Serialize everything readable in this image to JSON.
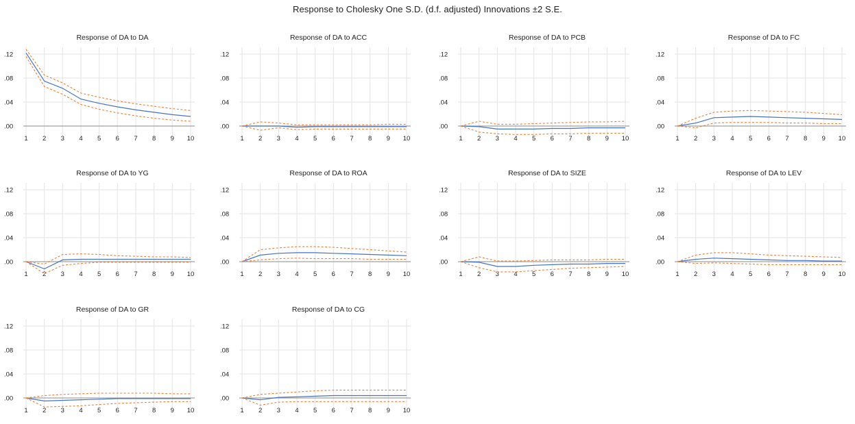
{
  "title": "Response to Cholesky One S.D. (d.f. adjusted) Innovations ±2 S.E.",
  "colors": {
    "response": "#4472c4",
    "band": "#ed7d31",
    "grid": "#e3e3e3",
    "zero": "#a0a0a0"
  },
  "chart_data": [
    {
      "type": "line",
      "title": "Response of DA to DA",
      "ylim": [
        -0.01,
        0.13
      ],
      "yticks": [
        ".00",
        ".04",
        ".08",
        ".12"
      ],
      "ytick_values": [
        0,
        0.04,
        0.08,
        0.12
      ],
      "x": [
        1,
        2,
        3,
        4,
        5,
        6,
        7,
        8,
        9,
        10
      ],
      "series": [
        {
          "role": "response",
          "values": [
            0.122,
            0.075,
            0.063,
            0.045,
            0.038,
            0.032,
            0.027,
            0.023,
            0.019,
            0.016
          ]
        },
        {
          "role": "upper",
          "values": [
            0.128,
            0.085,
            0.072,
            0.055,
            0.048,
            0.042,
            0.037,
            0.033,
            0.029,
            0.026
          ]
        },
        {
          "role": "lower",
          "values": [
            0.116,
            0.066,
            0.053,
            0.036,
            0.028,
            0.022,
            0.017,
            0.013,
            0.01,
            0.008
          ]
        }
      ]
    },
    {
      "type": "line",
      "title": "Response of DA to ACC",
      "ylim": [
        -0.01,
        0.13
      ],
      "yticks": [
        ".00",
        ".04",
        ".08",
        ".12"
      ],
      "ytick_values": [
        0,
        0.04,
        0.08,
        0.12
      ],
      "x": [
        1,
        2,
        3,
        4,
        5,
        6,
        7,
        8,
        9,
        10
      ],
      "series": [
        {
          "role": "response",
          "values": [
            0,
            0.0,
            0.0,
            -0.002,
            -0.001,
            -0.001,
            -0.001,
            -0.001,
            -0.001,
            -0.001
          ]
        },
        {
          "role": "upper",
          "values": [
            0,
            0.007,
            0.005,
            0.002,
            0.002,
            0.002,
            0.002,
            0.002,
            0.003,
            0.003
          ]
        },
        {
          "role": "lower",
          "values": [
            0,
            -0.007,
            -0.003,
            -0.006,
            -0.005,
            -0.005,
            -0.005,
            -0.005,
            -0.005,
            -0.005
          ]
        }
      ]
    },
    {
      "type": "line",
      "title": "Response of DA to PCB",
      "ylim": [
        -0.01,
        0.13
      ],
      "yticks": [
        ".00",
        ".04",
        ".08",
        ".12"
      ],
      "ytick_values": [
        0,
        0.04,
        0.08,
        0.12
      ],
      "x": [
        1,
        2,
        3,
        4,
        5,
        6,
        7,
        8,
        9,
        10
      ],
      "series": [
        {
          "role": "response",
          "values": [
            0,
            -0.001,
            -0.005,
            -0.005,
            -0.005,
            -0.004,
            -0.004,
            -0.003,
            -0.003,
            -0.003
          ]
        },
        {
          "role": "upper",
          "values": [
            0,
            0.008,
            0.003,
            0.003,
            0.004,
            0.005,
            0.006,
            0.007,
            0.007,
            0.008
          ]
        },
        {
          "role": "lower",
          "values": [
            0,
            -0.01,
            -0.013,
            -0.014,
            -0.014,
            -0.013,
            -0.013,
            -0.012,
            -0.012,
            -0.012
          ]
        }
      ]
    },
    {
      "type": "line",
      "title": "Response of DA to FC",
      "ylim": [
        -0.01,
        0.13
      ],
      "yticks": [
        ".00",
        ".04",
        ".08",
        ".12"
      ],
      "ytick_values": [
        0,
        0.04,
        0.08,
        0.12
      ],
      "x": [
        1,
        2,
        3,
        4,
        5,
        6,
        7,
        8,
        9,
        10
      ],
      "series": [
        {
          "role": "response",
          "values": [
            0,
            0.005,
            0.014,
            0.015,
            0.016,
            0.015,
            0.014,
            0.013,
            0.012,
            0.011
          ]
        },
        {
          "role": "upper",
          "values": [
            0,
            0.013,
            0.023,
            0.025,
            0.026,
            0.025,
            0.024,
            0.023,
            0.021,
            0.019
          ]
        },
        {
          "role": "lower",
          "values": [
            0,
            -0.003,
            0.005,
            0.006,
            0.006,
            0.006,
            0.005,
            0.005,
            0.004,
            0.004
          ]
        }
      ]
    },
    {
      "type": "line",
      "title": "Response of DA to YG",
      "ylim": [
        -0.01,
        0.13
      ],
      "yticks": [
        ".00",
        ".04",
        ".08",
        ".12"
      ],
      "ytick_values": [
        0,
        0.04,
        0.08,
        0.12
      ],
      "x": [
        1,
        2,
        3,
        4,
        5,
        6,
        7,
        8,
        9,
        10
      ],
      "series": [
        {
          "role": "response",
          "values": [
            0,
            -0.012,
            0.003,
            0.004,
            0.004,
            0.004,
            0.004,
            0.004,
            0.004,
            0.004
          ]
        },
        {
          "role": "upper",
          "values": [
            0,
            -0.004,
            0.012,
            0.013,
            0.012,
            0.01,
            0.009,
            0.008,
            0.008,
            0.007
          ]
        },
        {
          "role": "lower",
          "values": [
            0,
            -0.02,
            -0.006,
            -0.003,
            -0.001,
            -0.001,
            -0.001,
            -0.001,
            -0.001,
            -0.001
          ]
        }
      ]
    },
    {
      "type": "line",
      "title": "Response of DA to ROA",
      "ylim": [
        -0.01,
        0.13
      ],
      "yticks": [
        ".00",
        ".04",
        ".08",
        ".12"
      ],
      "ytick_values": [
        0,
        0.04,
        0.08,
        0.12
      ],
      "x": [
        1,
        2,
        3,
        4,
        5,
        6,
        7,
        8,
        9,
        10
      ],
      "series": [
        {
          "role": "response",
          "values": [
            0,
            0.011,
            0.014,
            0.015,
            0.015,
            0.014,
            0.013,
            0.012,
            0.011,
            0.01
          ]
        },
        {
          "role": "upper",
          "values": [
            0,
            0.02,
            0.023,
            0.025,
            0.025,
            0.024,
            0.022,
            0.02,
            0.018,
            0.016
          ]
        },
        {
          "role": "lower",
          "values": [
            0,
            0.003,
            0.005,
            0.006,
            0.005,
            0.005,
            0.005,
            0.004,
            0.004,
            0.004
          ]
        }
      ]
    },
    {
      "type": "line",
      "title": "Response of DA to SIZE",
      "ylim": [
        -0.01,
        0.13
      ],
      "yticks": [
        ".00",
        ".04",
        ".08",
        ".12"
      ],
      "ytick_values": [
        0,
        0.04,
        0.08,
        0.12
      ],
      "x": [
        1,
        2,
        3,
        4,
        5,
        6,
        7,
        8,
        9,
        10
      ],
      "series": [
        {
          "role": "response",
          "values": [
            0,
            -0.001,
            -0.008,
            -0.008,
            -0.006,
            -0.005,
            -0.004,
            -0.004,
            -0.003,
            -0.003
          ]
        },
        {
          "role": "upper",
          "values": [
            0,
            0.008,
            0.001,
            0.001,
            0.002,
            0.003,
            0.003,
            0.003,
            0.004,
            0.004
          ]
        },
        {
          "role": "lower",
          "values": [
            0,
            -0.01,
            -0.017,
            -0.017,
            -0.015,
            -0.013,
            -0.011,
            -0.01,
            -0.009,
            -0.008
          ]
        }
      ]
    },
    {
      "type": "line",
      "title": "Response of DA to LEV",
      "ylim": [
        -0.01,
        0.13
      ],
      "yticks": [
        ".00",
        ".04",
        ".08",
        ".12"
      ],
      "ytick_values": [
        0,
        0.04,
        0.08,
        0.12
      ],
      "x": [
        1,
        2,
        3,
        4,
        5,
        6,
        7,
        8,
        9,
        10
      ],
      "series": [
        {
          "role": "response",
          "values": [
            0,
            0.004,
            0.006,
            0.005,
            0.004,
            0.003,
            0.002,
            0.002,
            0.001,
            0.001
          ]
        },
        {
          "role": "upper",
          "values": [
            0,
            0.011,
            0.015,
            0.015,
            0.013,
            0.011,
            0.01,
            0.009,
            0.008,
            0.007
          ]
        },
        {
          "role": "lower",
          "values": [
            0,
            -0.003,
            -0.002,
            -0.003,
            -0.004,
            -0.005,
            -0.005,
            -0.005,
            -0.005,
            -0.005
          ]
        }
      ]
    },
    {
      "type": "line",
      "title": "Response of DA to GR",
      "ylim": [
        -0.01,
        0.13
      ],
      "yticks": [
        ".00",
        ".04",
        ".08",
        ".12"
      ],
      "ytick_values": [
        0,
        0.04,
        0.08,
        0.12
      ],
      "x": [
        1,
        2,
        3,
        4,
        5,
        6,
        7,
        8,
        9,
        10
      ],
      "series": [
        {
          "role": "response",
          "values": [
            0,
            -0.005,
            -0.004,
            -0.003,
            -0.002,
            -0.001,
            -0.001,
            -0.001,
            -0.001,
            -0.001
          ]
        },
        {
          "role": "upper",
          "values": [
            0,
            0.004,
            0.006,
            0.007,
            0.008,
            0.008,
            0.008,
            0.008,
            0.007,
            0.007
          ]
        },
        {
          "role": "lower",
          "values": [
            0,
            -0.015,
            -0.014,
            -0.013,
            -0.011,
            -0.009,
            -0.008,
            -0.007,
            -0.006,
            -0.006
          ]
        }
      ]
    },
    {
      "type": "line",
      "title": "Response of DA to CG",
      "ylim": [
        -0.01,
        0.13
      ],
      "yticks": [
        ".00",
        ".04",
        ".08",
        ".12"
      ],
      "ytick_values": [
        0,
        0.04,
        0.08,
        0.12
      ],
      "x": [
        1,
        2,
        3,
        4,
        5,
        6,
        7,
        8,
        9,
        10
      ],
      "series": [
        {
          "role": "response",
          "values": [
            0,
            -0.003,
            0.001,
            0.002,
            0.003,
            0.004,
            0.004,
            0.004,
            0.004,
            0.004
          ]
        },
        {
          "role": "upper",
          "values": [
            0,
            0.006,
            0.008,
            0.01,
            0.012,
            0.013,
            0.013,
            0.013,
            0.013,
            0.013
          ]
        },
        {
          "role": "lower",
          "values": [
            0,
            -0.012,
            -0.007,
            -0.006,
            -0.006,
            -0.006,
            -0.006,
            -0.006,
            -0.006,
            -0.006
          ]
        }
      ]
    }
  ]
}
